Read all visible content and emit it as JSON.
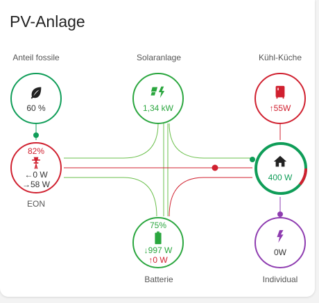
{
  "title": "PV-Anlage",
  "colors": {
    "fossil": "#0f9d58",
    "solar": "#2aa63e",
    "grid": "#d0202f",
    "home": "#0f9d58",
    "individual": "#8e3cb0",
    "kitchen": "#d0202f"
  },
  "fossil": {
    "label": "Anteil fossile",
    "value": "60 %",
    "icon": "leaf-icon"
  },
  "solar": {
    "label": "Solaranlage",
    "value": "1,34 kW",
    "icon": "solar-panel-icon"
  },
  "kitchen": {
    "label": "Kühl-Küche",
    "value": "↑55W",
    "icon": "fridge-icon"
  },
  "grid": {
    "label": "EON",
    "percent": "82%",
    "import": "←0 W",
    "export": "→58 W",
    "icon": "transmission-tower-icon"
  },
  "home": {
    "value": "400 W",
    "icon": "home-icon"
  },
  "battery": {
    "label": "Batterie",
    "percent": "75%",
    "charge": "↓997 W",
    "discharge": "↑0 W",
    "icon": "battery-icon"
  },
  "individual": {
    "label": "Individual",
    "value": "0W",
    "icon": "lightning-icon"
  }
}
